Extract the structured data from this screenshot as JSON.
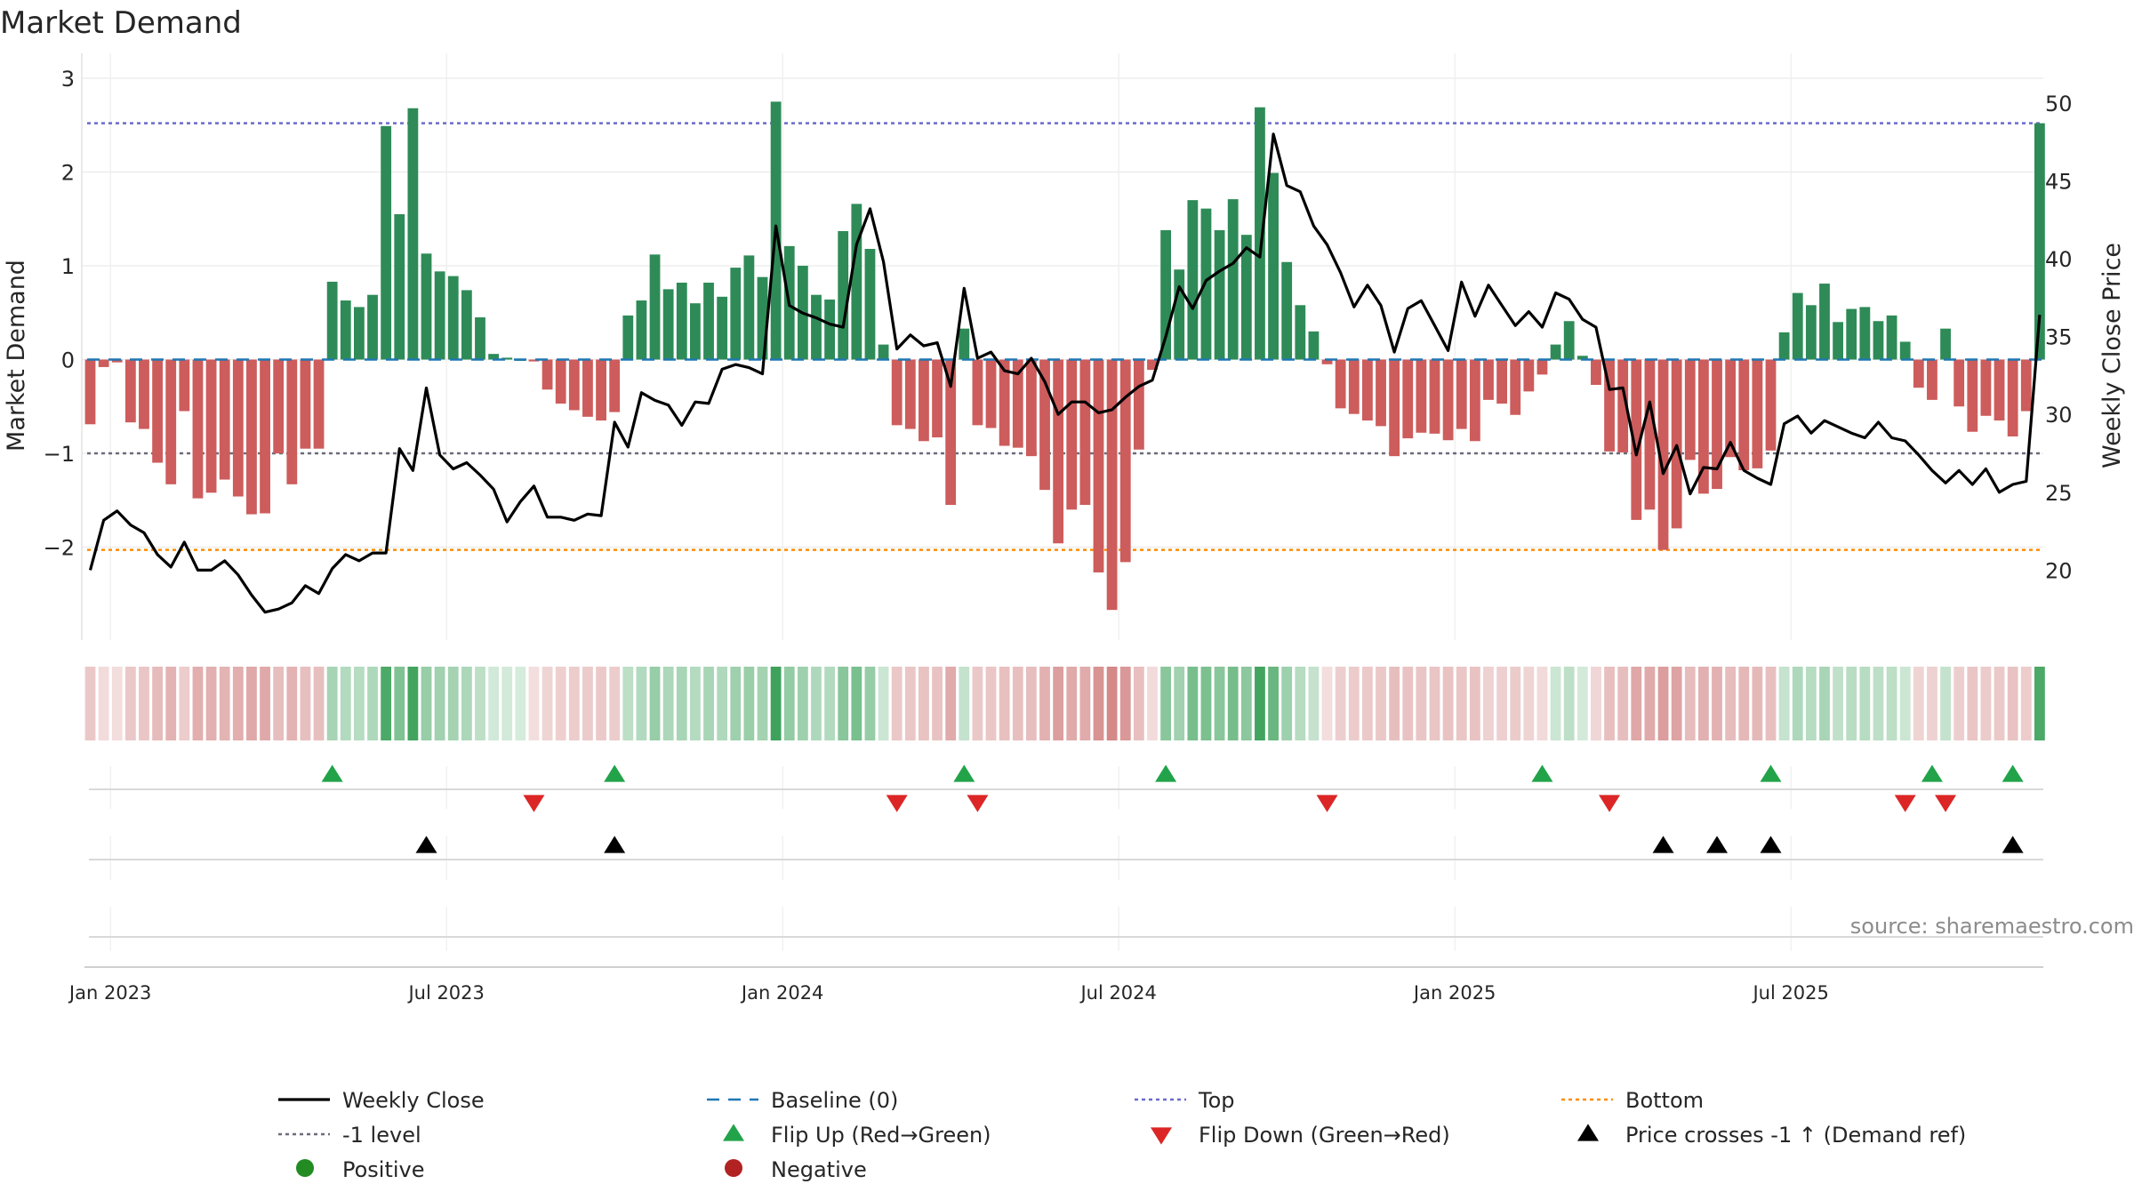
{
  "chart_data": {
    "type": "bar+line",
    "title": "Market Demand",
    "ylabel_left": "Market Demand",
    "ylabel_right": "Weekly Close Price",
    "ylim_left": [
      -3.0,
      3.0
    ],
    "ylim_right": [
      14.8,
      51.6
    ],
    "left_ticks": [
      "3",
      "2",
      "1",
      "0",
      "−1",
      "−2"
    ],
    "left_tick_values": [
      3,
      2,
      1,
      0,
      -1,
      -2
    ],
    "right_ticks": [
      "50",
      "45",
      "40",
      "35",
      "30",
      "25",
      "20"
    ],
    "right_tick_values": [
      50,
      45,
      40,
      35,
      30,
      25,
      20
    ],
    "x_ticks": [
      "Jan 2023",
      "Jul 2023",
      "Jan 2024",
      "Jul 2024",
      "Jan 2025",
      "Jul 2025"
    ],
    "x_tick_weeks": [
      1.5,
      26.5,
      51.5,
      76.5,
      101.5,
      126.5
    ],
    "levels": {
      "top": 2.52,
      "minus_one": -1,
      "bottom": -2.03,
      "baseline": 0
    },
    "demand": [
      -0.69,
      -0.08,
      -0.03,
      -0.67,
      -0.74,
      -1.1,
      -1.33,
      -0.55,
      -1.48,
      -1.42,
      -1.28,
      -1.46,
      -1.65,
      -1.64,
      -1.0,
      -1.33,
      -0.95,
      -0.95,
      0.83,
      0.63,
      0.56,
      0.69,
      2.49,
      1.55,
      2.68,
      1.13,
      0.94,
      0.89,
      0.74,
      0.45,
      0.06,
      0.02,
      0.0,
      -0.02,
      -0.32,
      -0.47,
      -0.54,
      -0.61,
      -0.65,
      -0.56,
      0.47,
      0.63,
      1.12,
      0.75,
      0.82,
      0.6,
      0.82,
      0.67,
      0.98,
      1.11,
      0.88,
      2.75,
      1.21,
      1.0,
      0.69,
      0.64,
      1.37,
      1.66,
      1.18,
      0.16,
      -0.7,
      -0.74,
      -0.87,
      -0.83,
      -1.55,
      0.33,
      -0.7,
      -0.73,
      -0.92,
      -0.94,
      -1.03,
      -1.39,
      -1.96,
      -1.6,
      -1.55,
      -2.27,
      -2.67,
      -2.16,
      -0.96,
      -0.11,
      1.38,
      0.96,
      1.7,
      1.61,
      1.38,
      1.71,
      1.33,
      2.69,
      1.99,
      1.04,
      0.58,
      0.3,
      -0.05,
      -0.52,
      -0.58,
      -0.65,
      -0.71,
      -1.03,
      -0.84,
      -0.78,
      -0.79,
      -0.86,
      -0.74,
      -0.87,
      -0.43,
      -0.47,
      -0.59,
      -0.34,
      -0.16,
      0.16,
      0.41,
      0.04,
      -0.27,
      -0.98,
      -0.99,
      -1.71,
      -1.6,
      -2.03,
      -1.8,
      -1.07,
      -1.43,
      -1.38,
      -1.04,
      -1.18,
      -1.16,
      -0.97,
      0.29,
      0.71,
      0.58,
      0.81,
      0.4,
      0.54,
      0.56,
      0.41,
      0.47,
      0.19,
      -0.3,
      -0.43,
      0.33,
      -0.5,
      -0.77,
      -0.6,
      -0.65,
      -0.82,
      -0.55,
      2.52
    ],
    "weekly_close": [
      20.0,
      23.2,
      23.8,
      22.9,
      22.4,
      21.0,
      20.2,
      21.8,
      20.0,
      20.0,
      20.6,
      19.7,
      18.4,
      17.3,
      17.5,
      17.9,
      19.0,
      18.5,
      20.1,
      21.0,
      20.6,
      21.1,
      21.1,
      27.8,
      26.4,
      31.7,
      27.4,
      26.5,
      26.9,
      26.1,
      25.2,
      23.1,
      24.4,
      25.4,
      23.4,
      23.4,
      23.2,
      23.6,
      23.5,
      29.5,
      27.9,
      31.4,
      30.9,
      30.6,
      29.3,
      30.8,
      30.7,
      32.9,
      33.2,
      33.0,
      32.6,
      42.1,
      37.0,
      36.5,
      36.2,
      35.8,
      35.6,
      40.9,
      43.2,
      39.8,
      34.2,
      35.1,
      34.4,
      34.6,
      31.8,
      38.1,
      33.6,
      34.0,
      32.8,
      32.6,
      33.6,
      32.1,
      30.0,
      30.8,
      30.8,
      30.1,
      30.3,
      31.1,
      31.8,
      32.2,
      35.0,
      38.2,
      36.8,
      38.6,
      39.2,
      39.7,
      40.7,
      40.1,
      48.0,
      44.7,
      44.3,
      42.1,
      40.9,
      39.1,
      36.9,
      38.3,
      37.0,
      34.0,
      36.8,
      37.3,
      35.7,
      34.1,
      38.5,
      36.3,
      38.3,
      37.0,
      35.7,
      36.6,
      35.6,
      37.8,
      37.4,
      36.1,
      35.6,
      31.6,
      31.7,
      27.4,
      30.8,
      26.2,
      28.0,
      24.9,
      26.6,
      26.5,
      28.2,
      26.4,
      25.9,
      25.5,
      29.4,
      29.9,
      28.8,
      29.6,
      29.2,
      28.8,
      28.5,
      29.5,
      28.5,
      28.3,
      27.4,
      26.4,
      25.6,
      26.4,
      25.5,
      26.5,
      25.0,
      25.5,
      25.7,
      36.4
    ],
    "flip_up_weeks": [
      18,
      39,
      65,
      80,
      108,
      125,
      137,
      143
    ],
    "flip_down_weeks": [
      33,
      60,
      66,
      92,
      113,
      135,
      138
    ],
    "price_cross_weeks": [
      25,
      39,
      117,
      121,
      125,
      143
    ],
    "legend": [
      [
        "Weekly Close",
        "Baseline (0)",
        "Top",
        "Bottom"
      ],
      [
        "-1 level",
        "Flip Up (Red→Green)",
        "Flip Down (Green→Red)",
        "Price crosses -1 ↑ (Demand ref)"
      ],
      [
        "Positive",
        "Negative"
      ]
    ],
    "source": "source: sharemaestro.com",
    "colors": {
      "positive_bar": "#2e8b57",
      "negative_bar": "#cd5c5c",
      "line": "#000000",
      "top": "#6a6acd",
      "bottom": "#ff8c00",
      "minus_one": "#6b6b7b",
      "baseline": "#1f77b4",
      "flip_up": "#22a34a",
      "flip_down": "#dc2626",
      "cross": "#000000",
      "positive_dot": "#228b22",
      "negative_dot": "#b22222"
    }
  }
}
